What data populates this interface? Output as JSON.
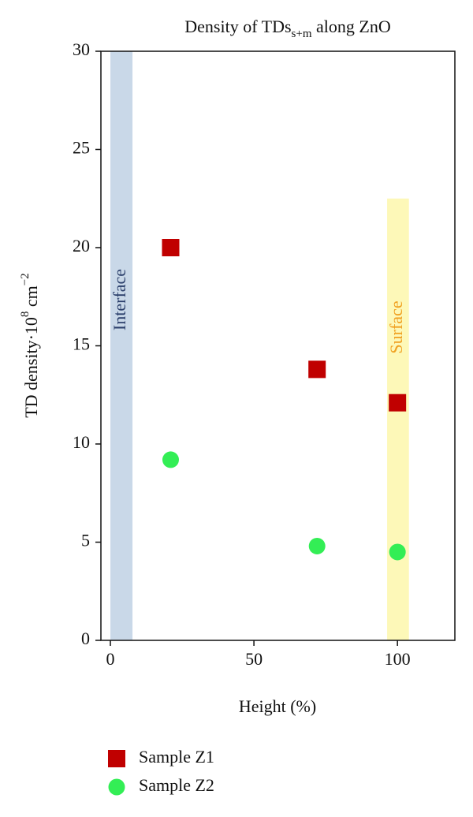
{
  "chart_data": {
    "type": "scatter",
    "title": [
      "Density of TDs",
      "s+m",
      " along ZnO"
    ],
    "x_label": "Height (%)",
    "y_label": [
      "TD density·10",
      "8",
      " cm",
      "−2"
    ],
    "x": [
      21,
      72,
      100
    ],
    "series": [
      {
        "name": "Sample Z1",
        "color": "#c00000",
        "marker": "square",
        "values": [
          20,
          13.8,
          12.1
        ]
      },
      {
        "name": "Sample Z2",
        "color": "#33ee55",
        "marker": "circle",
        "values": [
          9.2,
          4.8,
          4.5
        ]
      }
    ],
    "bands": [
      {
        "label": "Interface",
        "x": [
          0,
          7.7
        ],
        "y": [
          0,
          30
        ],
        "color": "#c9d8e8",
        "label_color": "#2b3f6b"
      },
      {
        "label": "Surface",
        "x": [
          96.4,
          104
        ],
        "y": [
          0,
          22.5
        ],
        "color": "#fdf8b8",
        "label_color": "#f0a020"
      }
    ],
    "xlim": [
      -3.3,
      120
    ],
    "xticks": [
      0,
      50,
      100
    ],
    "ylim": [
      0,
      30
    ],
    "yticks": [
      0,
      5,
      10,
      15,
      20,
      25,
      30
    ],
    "grid": false,
    "legend": "bottom"
  }
}
